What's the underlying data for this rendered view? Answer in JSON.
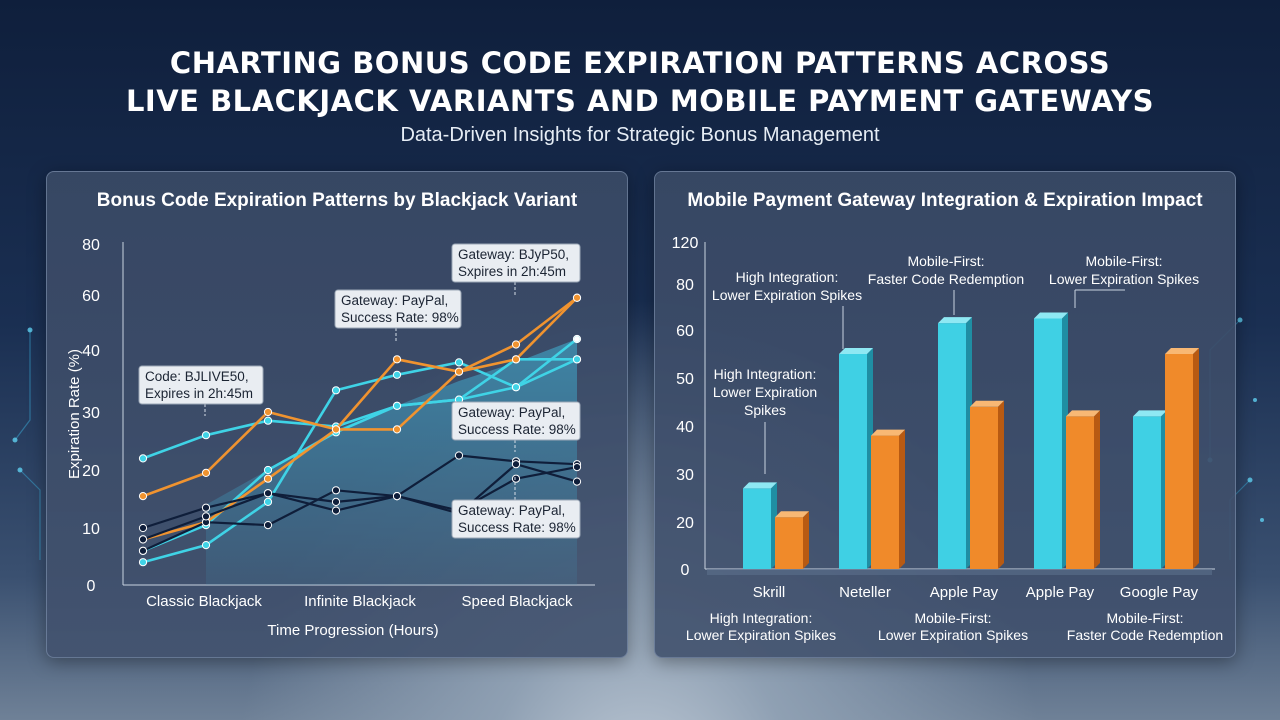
{
  "header": {
    "title_line1": "CHARTING BONUS CODE EXPIRATION PATTERNS ACROSS",
    "title_line2": "LIVE BLACKJACK VARIANTS AND MOBILE PAYMENT GATEWAYS",
    "subtitle": "Data-Driven Insights for Strategic Bonus Management"
  },
  "colors": {
    "cyan": "#3fd3e6",
    "orange": "#f0932f",
    "navy": "#0f1e3a",
    "area": "#3f8fb0"
  },
  "chart_data": [
    {
      "type": "line",
      "title": "Bonus Code Expiration Patterns by Blackjack Variant",
      "xlabel": "Time Progression (Hours)",
      "ylabel": "Expiration Rate (%)",
      "ylim": [
        0,
        80
      ],
      "yticks": [
        "0",
        "10",
        "20",
        "30",
        "40",
        "60",
        "80"
      ],
      "categories": [
        "Classic Blackjack",
        "Infinite Blackjack",
        "Speed Blackjack"
      ],
      "x": [
        0,
        1,
        2,
        3,
        4,
        5,
        6,
        7
      ],
      "series": [
        {
          "color": "cyan",
          "values": [
            22,
            26,
            28.5,
            27.5,
            31,
            32,
            38.5,
            38.5
          ]
        },
        {
          "color": "cyan",
          "values": [
            4,
            7,
            14.5,
            33.5,
            36,
            38,
            34,
            44
          ]
        },
        {
          "color": "cyan",
          "values": [
            6,
            10.5,
            20,
            26.5,
            31,
            32,
            34,
            38.5
          ]
        },
        {
          "color": "orange",
          "values": [
            15.5,
            19.5,
            30,
            27,
            27,
            36.5,
            38.5,
            59
          ]
        },
        {
          "color": "orange",
          "values": [
            8,
            11,
            18.5,
            27,
            38.5,
            36.5,
            42,
            59
          ]
        },
        {
          "color": "navy",
          "values": [
            10,
            13.5,
            16,
            13,
            15.5,
            22.5,
            21.5,
            21
          ]
        },
        {
          "color": "navy",
          "values": [
            6,
            11,
            10.5,
            16.5,
            15.5,
            13,
            18.5,
            20.5
          ]
        },
        {
          "color": "navy",
          "values": [
            8,
            12,
            16,
            14.5,
            15.5,
            12.5,
            21,
            18
          ]
        }
      ],
      "area_fill": [
        14,
        20,
        27,
        31,
        35,
        38,
        44
      ],
      "annotations": [
        {
          "line1": "Code: BJLIVE50,",
          "line2": "Expires in 2h:45m"
        },
        {
          "line1": "Gateway: PayPal,",
          "line2": "Success Rate: 98%"
        },
        {
          "line1": "Gateway: BJyP50,",
          "line2": "Sxpires in 2h:45m"
        },
        {
          "line1": "Gateway: PayPal,",
          "line2": "Success Rate: 98%"
        },
        {
          "line1": "Gateway: PayPal,",
          "line2": "Success Rate: 98%"
        }
      ]
    },
    {
      "type": "bar",
      "title": "Mobile Payment Gateway Integration & Expiration Impact",
      "categories": [
        "Skrill",
        "Neteller",
        "Apple Pay",
        "Apple Pay",
        "Google Pay"
      ],
      "ylim": [
        0,
        120
      ],
      "yticks": [
        "0",
        "20",
        "30",
        "40",
        "50",
        "60",
        "80",
        "120"
      ],
      "series": [
        {
          "color": "cyan",
          "values": [
            27,
            55,
            63,
            65,
            42
          ]
        },
        {
          "color": "orange",
          "values": [
            21,
            38,
            44,
            42,
            55
          ]
        }
      ],
      "top_annotations": [
        {
          "line1": "High Integration:",
          "line2": "Lower Expiration Spikes",
          "line3": ""
        },
        {
          "line1": "Mobile-First:",
          "line2": "Faster Code Redemption",
          "line3": ""
        },
        {
          "line1": "Mobile-First:",
          "line2": "Lower Expiration Spikes",
          "line3": ""
        },
        {
          "line1": "High Integration:",
          "line2": "Lower Expiration",
          "line3": "Spikes"
        }
      ],
      "bottom_annotations": [
        {
          "line1": "High Integration:",
          "line2": "Lower Expiration Spikes"
        },
        {
          "line1": "Mobile-First:",
          "line2": "Lower Expiration Spikes"
        },
        {
          "line1": "Mobile-First:",
          "line2": "Faster Code Redemption"
        }
      ]
    }
  ]
}
